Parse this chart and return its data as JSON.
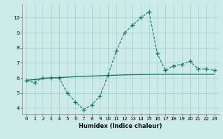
{
  "x": [
    0,
    1,
    2,
    3,
    4,
    5,
    6,
    7,
    8,
    9,
    10,
    11,
    12,
    13,
    14,
    15,
    16,
    17,
    18,
    19,
    20,
    21,
    22,
    23
  ],
  "y_curve": [
    5.8,
    5.7,
    6.0,
    6.0,
    6.0,
    5.0,
    4.4,
    3.9,
    4.2,
    4.8,
    6.2,
    7.8,
    9.0,
    9.5,
    10.0,
    10.4,
    7.6,
    6.5,
    6.8,
    6.9,
    7.1,
    6.6,
    6.6,
    6.5
  ],
  "y_line": [
    5.85,
    5.88,
    5.95,
    6.0,
    6.02,
    6.05,
    6.08,
    6.1,
    6.12,
    6.14,
    6.16,
    6.18,
    6.2,
    6.21,
    6.22,
    6.23,
    6.24,
    6.24,
    6.24,
    6.24,
    6.24,
    6.24,
    6.24,
    6.24
  ],
  "line_color": "#1a7a6a",
  "bg_color": "#cceae8",
  "grid_color": "#aad4d0",
  "xlabel": "Humidex (Indice chaleur)",
  "xlim": [
    -0.5,
    23.5
  ],
  "ylim": [
    3.6,
    10.9
  ],
  "yticks": [
    4,
    5,
    6,
    7,
    8,
    9,
    10
  ],
  "xticks": [
    0,
    1,
    2,
    3,
    4,
    5,
    6,
    7,
    8,
    9,
    10,
    11,
    12,
    13,
    14,
    15,
    16,
    17,
    18,
    19,
    20,
    21,
    22,
    23
  ]
}
